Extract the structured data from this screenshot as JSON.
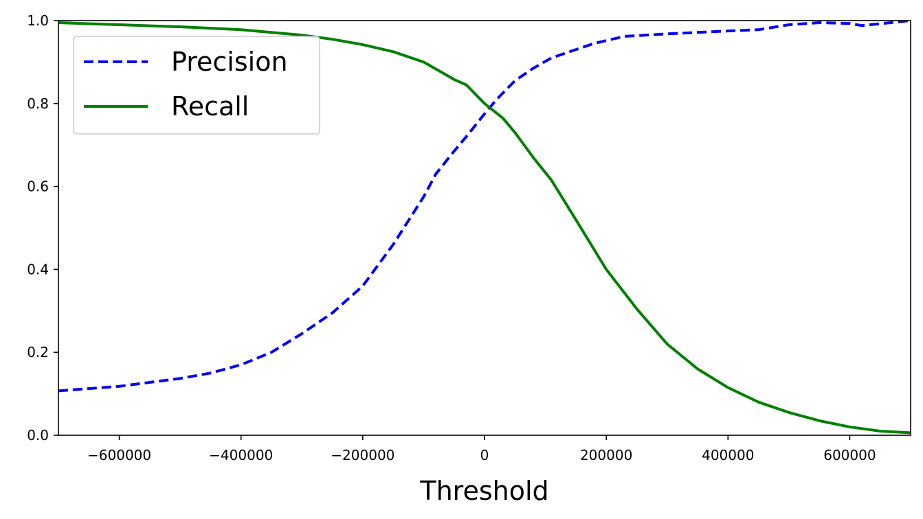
{
  "chart_data": {
    "type": "line",
    "title": "",
    "xlabel": "Threshold",
    "ylabel": "",
    "xlim": [
      -700000,
      700000
    ],
    "ylim": [
      0.0,
      1.0
    ],
    "grid": false,
    "legend_position": "top-left",
    "x_ticks": [
      -600000,
      -400000,
      -200000,
      0,
      200000,
      400000,
      600000
    ],
    "x_tick_labels": [
      "−600000",
      "−400000",
      "−200000",
      "0",
      "200000",
      "400000",
      "600000"
    ],
    "y_ticks": [
      0.0,
      0.2,
      0.4,
      0.6,
      0.8,
      1.0
    ],
    "y_tick_labels": [
      "0.0",
      "0.2",
      "0.4",
      "0.6",
      "0.8",
      "1.0"
    ],
    "series": [
      {
        "name": "Precision",
        "color": "#0000ff",
        "linestyle": "dashed",
        "x": [
          -700000,
          -600000,
          -500000,
          -450000,
          -400000,
          -350000,
          -300000,
          -250000,
          -200000,
          -150000,
          -100000,
          -80000,
          -50000,
          -30000,
          0,
          20000,
          50000,
          80000,
          110000,
          150000,
          180000,
          230000,
          300000,
          400000,
          450000,
          500000,
          550000,
          600000,
          620000,
          700000
        ],
        "y": [
          0.107,
          0.118,
          0.137,
          0.15,
          0.17,
          0.2,
          0.245,
          0.295,
          0.36,
          0.46,
          0.575,
          0.63,
          0.685,
          0.72,
          0.775,
          0.81,
          0.855,
          0.885,
          0.91,
          0.93,
          0.945,
          0.962,
          0.968,
          0.975,
          0.978,
          0.99,
          0.995,
          0.993,
          0.988,
          1.0
        ]
      },
      {
        "name": "Recall",
        "color": "#008000",
        "linestyle": "solid",
        "x": [
          -700000,
          -600000,
          -500000,
          -400000,
          -300000,
          -250000,
          -200000,
          -150000,
          -100000,
          -70000,
          -50000,
          -30000,
          0,
          30000,
          50000,
          80000,
          110000,
          150000,
          200000,
          250000,
          300000,
          350000,
          400000,
          450000,
          500000,
          550000,
          600000,
          650000,
          700000
        ],
        "y": [
          0.995,
          0.99,
          0.985,
          0.978,
          0.965,
          0.955,
          0.942,
          0.925,
          0.9,
          0.875,
          0.858,
          0.845,
          0.8,
          0.765,
          0.73,
          0.67,
          0.615,
          0.52,
          0.4,
          0.305,
          0.22,
          0.16,
          0.115,
          0.08,
          0.055,
          0.035,
          0.02,
          0.01,
          0.006
        ]
      }
    ]
  }
}
